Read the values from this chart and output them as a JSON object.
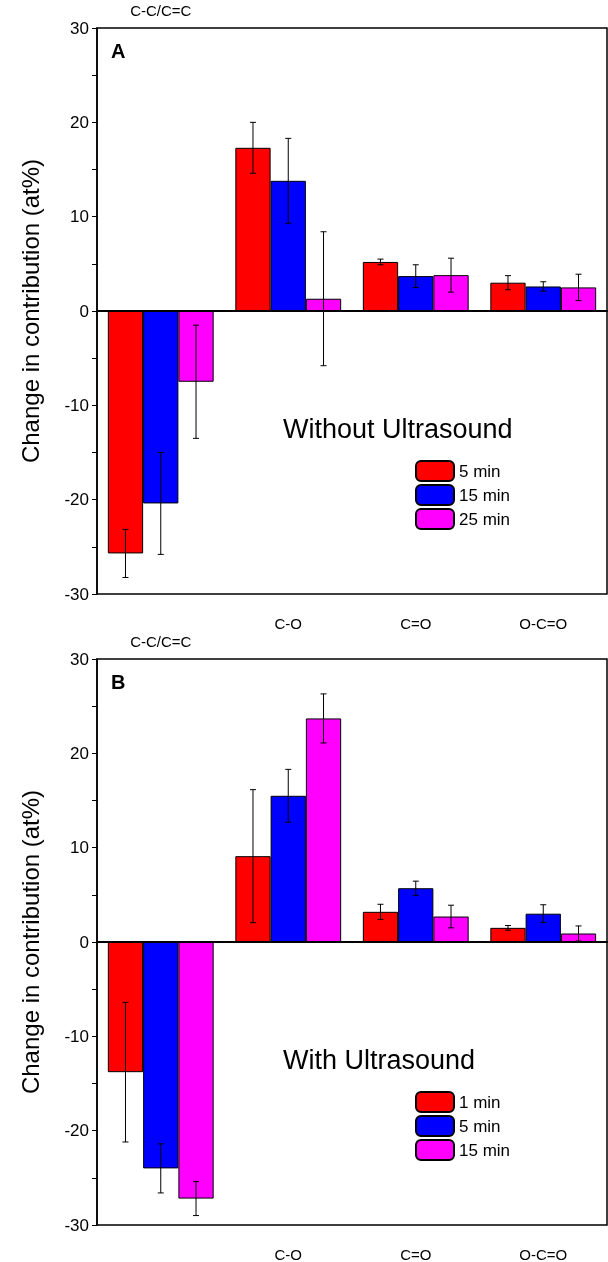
{
  "chart_data": [
    {
      "type": "bar",
      "title": "A",
      "ylabel": "Change in contribution (at%)",
      "legend_title": "Without Ultrasound",
      "categories": [
        "C-C/C=C",
        "C-O",
        "C=O",
        "O-C=O"
      ],
      "ylim": [
        -30,
        30
      ],
      "yticks": [
        -30,
        -20,
        -10,
        0,
        10,
        20,
        30
      ],
      "legend": "bottom right",
      "series": [
        {
          "name": "5 min",
          "color": "#ff0000",
          "values": [
            -25.7,
            17.3,
            5.2,
            3.0
          ],
          "errors": [
            2.55,
            2.7,
            0.3,
            0.75
          ]
        },
        {
          "name": "15 min",
          "color": "#0000ff",
          "values": [
            -20.4,
            13.8,
            3.7,
            2.6
          ],
          "errors": [
            5.4,
            4.5,
            1.2,
            0.5
          ]
        },
        {
          "name": "25 min",
          "color": "#ff00ff",
          "values": [
            -7.5,
            1.3,
            3.8,
            2.5
          ],
          "errors": [
            6.0,
            7.1,
            1.8,
            1.4
          ]
        }
      ]
    },
    {
      "type": "bar",
      "title": "B",
      "ylabel": "Change in contribution (at%)",
      "legend_title": "With Ultrasound",
      "categories": [
        "C-C/C=C",
        "C-O",
        "C=O",
        "O-C=O"
      ],
      "ylim": [
        -30,
        30
      ],
      "yticks": [
        -30,
        -20,
        -10,
        0,
        10,
        20,
        30
      ],
      "legend": "bottom right",
      "series": [
        {
          "name": "1 min",
          "color": "#ff0000",
          "values": [
            -13.8,
            9.1,
            3.2,
            1.5
          ],
          "errors": [
            7.4,
            7.05,
            0.8,
            0.25
          ]
        },
        {
          "name": "5 min",
          "color": "#0000ff",
          "values": [
            -24.0,
            15.5,
            5.7,
            3.0
          ],
          "errors": [
            2.6,
            2.8,
            0.75,
            0.95
          ]
        },
        {
          "name": "15 min",
          "color": "#ff00ff",
          "values": [
            -27.2,
            23.7,
            2.7,
            0.9
          ],
          "errors": [
            1.8,
            2.6,
            1.2,
            0.8
          ]
        }
      ]
    }
  ]
}
